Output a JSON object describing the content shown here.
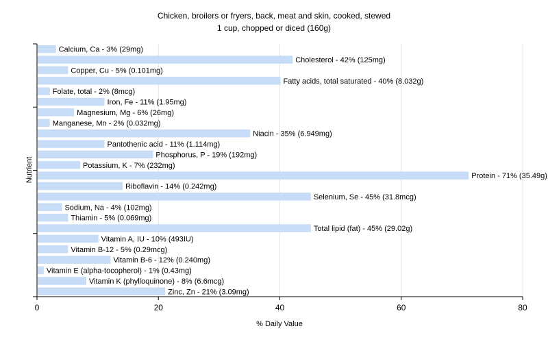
{
  "chart_data": {
    "type": "bar",
    "orientation": "horizontal",
    "title": "Chicken, broilers or fryers, back, meat and skin, cooked, stewed",
    "subtitle": "1 cup, chopped or diced (160g)",
    "xlabel": "% Daily Value",
    "ylabel": "Nutrient",
    "xlim": [
      0,
      80
    ],
    "xticks": [
      "0",
      "20",
      "40",
      "60",
      "80"
    ],
    "grid": true,
    "bar_color": "#c6dcf7",
    "categories": [
      "Calcium, Ca - 3% (29mg)",
      "Cholesterol - 42% (125mg)",
      "Copper, Cu - 5% (0.101mg)",
      "Fatty acids, total saturated - 40% (8.032g)",
      "Folate, total - 2% (8mcg)",
      "Iron, Fe - 11% (1.95mg)",
      "Magnesium, Mg - 6% (26mg)",
      "Manganese, Mn - 2% (0.032mg)",
      "Niacin - 35% (6.949mg)",
      "Pantothenic acid - 11% (1.114mg)",
      "Phosphorus, P - 19% (192mg)",
      "Potassium, K - 7% (232mg)",
      "Protein - 71% (35.49g)",
      "Riboflavin - 14% (0.242mg)",
      "Selenium, Se - 45% (31.8mcg)",
      "Sodium, Na - 4% (102mg)",
      "Thiamin - 5% (0.069mg)",
      "Total lipid (fat) - 45% (29.02g)",
      "Vitamin A, IU - 10% (493IU)",
      "Vitamin B-12 - 5% (0.29mcg)",
      "Vitamin B-6 - 12% (0.240mg)",
      "Vitamin E (alpha-tocopherol) - 1% (0.43mg)",
      "Vitamin K (phylloquinone) - 8% (6.6mcg)",
      "Zinc, Zn - 21% (3.09mg)"
    ],
    "values": [
      3,
      42,
      5,
      40,
      2,
      11,
      6,
      2,
      35,
      11,
      19,
      7,
      71,
      14,
      45,
      4,
      5,
      45,
      10,
      5,
      12,
      1,
      8,
      21
    ]
  }
}
